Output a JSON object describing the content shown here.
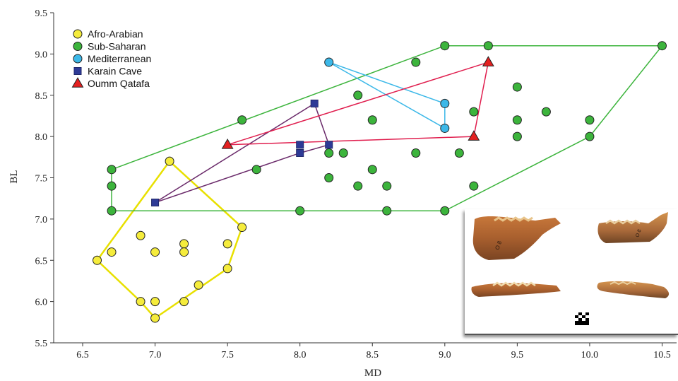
{
  "chart_data": {
    "type": "scatter",
    "title": "",
    "xlabel": "MD",
    "ylabel": "BL",
    "xlim": [
      6.3,
      10.6
    ],
    "ylim": [
      5.5,
      9.5
    ],
    "xticks": [
      "6.5",
      "7.0",
      "7.5",
      "8.0",
      "8.5",
      "9.0",
      "9.5",
      "10.0",
      "10.5"
    ],
    "yticks": [
      "5.5",
      "6.0",
      "6.5",
      "7.0",
      "7.5",
      "8.0",
      "8.5",
      "9.0",
      "9.5"
    ],
    "grid": false,
    "legend_position": "top-left",
    "series": [
      {
        "name": "Afro-Arabian",
        "marker": "circle",
        "color": "#f5ec3c",
        "hull_color": "#e8e000",
        "points": [
          [
            6.6,
            6.5
          ],
          [
            6.7,
            6.6
          ],
          [
            6.9,
            6.8
          ],
          [
            6.9,
            6.0
          ],
          [
            7.0,
            6.6
          ],
          [
            7.0,
            6.0
          ],
          [
            7.0,
            5.8
          ],
          [
            7.1,
            7.7
          ],
          [
            7.2,
            6.7
          ],
          [
            7.2,
            6.6
          ],
          [
            7.2,
            6.0
          ],
          [
            7.3,
            6.2
          ],
          [
            7.5,
            6.7
          ],
          [
            7.5,
            6.4
          ],
          [
            7.6,
            6.9
          ]
        ],
        "hull": [
          [
            6.6,
            6.5
          ],
          [
            7.1,
            7.7
          ],
          [
            7.6,
            6.9
          ],
          [
            7.5,
            6.4
          ],
          [
            7.0,
            5.8
          ],
          [
            6.9,
            6.0
          ],
          [
            6.6,
            6.5
          ]
        ]
      },
      {
        "name": "Sub-Saharan",
        "marker": "circle",
        "color": "#3cb43c",
        "hull_color": "#3cb43c",
        "points": [
          [
            6.7,
            7.6
          ],
          [
            6.7,
            7.4
          ],
          [
            6.7,
            7.1
          ],
          [
            7.6,
            8.2
          ],
          [
            7.7,
            7.6
          ],
          [
            8.0,
            7.1
          ],
          [
            8.2,
            7.8
          ],
          [
            8.2,
            7.5
          ],
          [
            8.3,
            7.8
          ],
          [
            8.4,
            8.5
          ],
          [
            8.4,
            7.4
          ],
          [
            8.5,
            8.2
          ],
          [
            8.5,
            7.6
          ],
          [
            8.6,
            7.4
          ],
          [
            8.6,
            7.1
          ],
          [
            8.8,
            8.9
          ],
          [
            8.8,
            7.8
          ],
          [
            9.0,
            9.1
          ],
          [
            9.0,
            7.1
          ],
          [
            9.1,
            7.8
          ],
          [
            9.2,
            8.3
          ],
          [
            9.2,
            7.4
          ],
          [
            9.3,
            9.1
          ],
          [
            9.5,
            8.6
          ],
          [
            9.5,
            8.2
          ],
          [
            9.5,
            8.0
          ],
          [
            9.7,
            8.3
          ],
          [
            10.0,
            8.2
          ],
          [
            10.0,
            8.0
          ],
          [
            10.5,
            9.1
          ]
        ],
        "hull": [
          [
            6.7,
            7.6
          ],
          [
            9.0,
            9.1
          ],
          [
            10.5,
            9.1
          ],
          [
            10.0,
            8.0
          ],
          [
            9.0,
            7.1
          ],
          [
            6.7,
            7.1
          ],
          [
            6.7,
            7.6
          ]
        ]
      },
      {
        "name": "Mediterranean",
        "marker": "circle",
        "color": "#3cb8e8",
        "hull_color": "#3cb8e8",
        "points": [
          [
            8.2,
            8.9
          ],
          [
            9.0,
            8.4
          ],
          [
            9.0,
            8.1
          ]
        ],
        "hull": [
          [
            8.2,
            8.9
          ],
          [
            9.0,
            8.4
          ],
          [
            9.0,
            8.1
          ],
          [
            8.2,
            8.9
          ]
        ]
      },
      {
        "name": "Karain Cave",
        "marker": "square",
        "color": "#2e3a96",
        "hull_color": "#6a2a6a",
        "points": [
          [
            7.0,
            7.2
          ],
          [
            8.0,
            7.9
          ],
          [
            8.0,
            7.8
          ],
          [
            8.1,
            8.4
          ],
          [
            8.2,
            7.9
          ]
        ],
        "hull": [
          [
            7.0,
            7.2
          ],
          [
            8.1,
            8.4
          ],
          [
            8.2,
            7.9
          ],
          [
            8.0,
            7.8
          ],
          [
            7.0,
            7.2
          ]
        ]
      },
      {
        "name": "Oumm Qatafa",
        "marker": "triangle",
        "color": "#e42020",
        "hull_color": "#e01e4e",
        "points": [
          [
            7.5,
            7.9
          ],
          [
            9.2,
            8.0
          ],
          [
            9.3,
            8.9
          ]
        ],
        "hull": [
          [
            7.5,
            7.9
          ],
          [
            9.3,
            8.9
          ],
          [
            9.2,
            8.0
          ],
          [
            7.5,
            7.9
          ]
        ]
      }
    ]
  }
}
